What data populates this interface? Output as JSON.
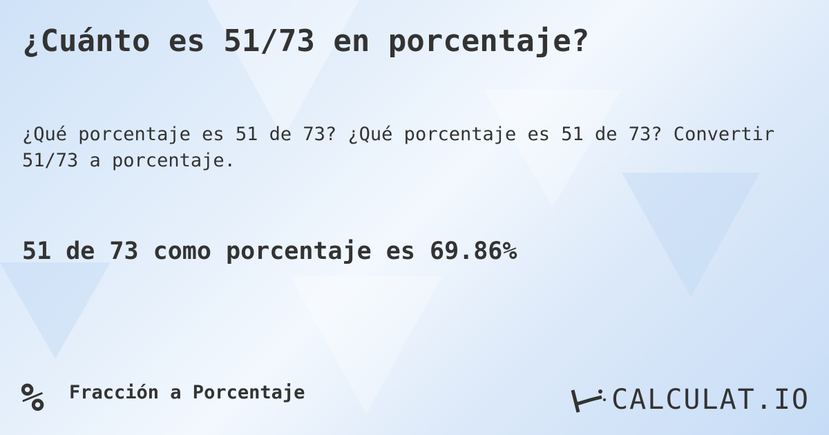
{
  "title": "¿Cuánto es 51/73 en porcentaje?",
  "description": "¿Qué porcentaje es 51 de 73? ¿Qué porcentaje es 51 de 73? Convertir 51/73 a porcentaje.",
  "result": "51 de 73 como porcentaje es 69.86%",
  "category": {
    "icon": "percent-icon",
    "symbol": "%",
    "label": "Fracción a Porcentaje"
  },
  "logo": {
    "text": "CALCULAT.IO",
    "icon": "magic-wand-hand-icon"
  }
}
